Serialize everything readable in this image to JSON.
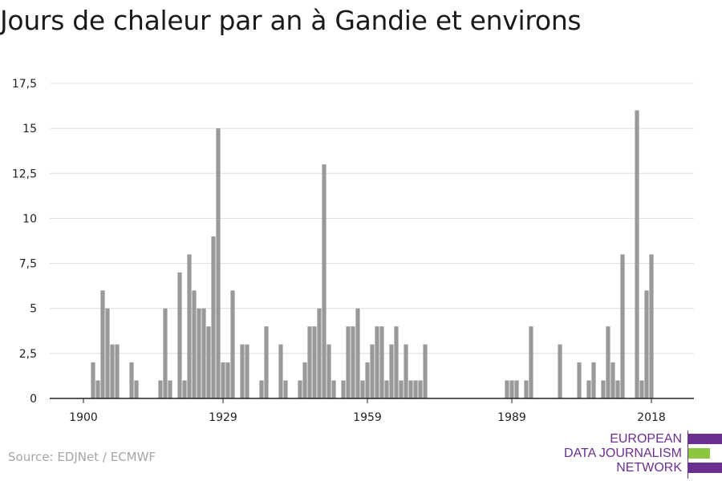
{
  "page": {
    "title": "Jours de chaleur par an à Gandie et environs",
    "source": "Source: EDJNet / ECMWF",
    "logo": {
      "lines": [
        "EUROPEAN",
        "DATA JOURNALISM",
        "NETWORK"
      ],
      "colors": {
        "purple": "#6b2f8f",
        "green": "#8cc63f"
      }
    }
  },
  "chart_data": {
    "type": "bar",
    "color": "#999999",
    "grid": true,
    "ylim": [
      0,
      17.5
    ],
    "yticks": [
      0,
      2.5,
      5,
      7.5,
      10,
      12.5,
      15,
      17.5
    ],
    "ytick_labels": [
      "0",
      "2,5",
      "5",
      "7,5",
      "10",
      "12,5",
      "15",
      "17,5"
    ],
    "xlim": [
      1899,
      2018
    ],
    "xticks": [
      1900,
      1929,
      1959,
      1989,
      2018
    ],
    "xtick_labels": [
      "1900",
      "1929",
      "1959",
      "1989",
      "2018"
    ],
    "xlabel": "",
    "ylabel": "",
    "years": [
      1900,
      1901,
      1902,
      1903,
      1904,
      1905,
      1906,
      1907,
      1908,
      1909,
      1910,
      1911,
      1912,
      1913,
      1914,
      1915,
      1916,
      1917,
      1918,
      1919,
      1920,
      1921,
      1922,
      1923,
      1924,
      1925,
      1926,
      1927,
      1928,
      1929,
      1930,
      1931,
      1932,
      1933,
      1934,
      1935,
      1936,
      1937,
      1938,
      1939,
      1940,
      1941,
      1942,
      1943,
      1944,
      1945,
      1946,
      1947,
      1948,
      1949,
      1950,
      1951,
      1952,
      1953,
      1954,
      1955,
      1956,
      1957,
      1958,
      1959,
      1960,
      1961,
      1962,
      1963,
      1964,
      1965,
      1966,
      1967,
      1968,
      1969,
      1970,
      1971,
      1972,
      1973,
      1974,
      1975,
      1976,
      1977,
      1978,
      1979,
      1980,
      1981,
      1982,
      1983,
      1984,
      1985,
      1986,
      1987,
      1988,
      1989,
      1990,
      1991,
      1992,
      1993,
      1994,
      1995,
      1996,
      1997,
      1998,
      1999,
      2000,
      2001,
      2002,
      2003,
      2004,
      2005,
      2006,
      2007,
      2008,
      2009,
      2010,
      2011,
      2012,
      2013,
      2014,
      2015,
      2016,
      2017,
      2018,
      2019
    ],
    "values": [
      0,
      0,
      2,
      1,
      6,
      5,
      3,
      3,
      0,
      0,
      2,
      1,
      0,
      0,
      0,
      0,
      1,
      5,
      1,
      0,
      7,
      1,
      8,
      6,
      5,
      5,
      4,
      9,
      15,
      2,
      2,
      6,
      0,
      3,
      3,
      0,
      0,
      1,
      4,
      0,
      0,
      3,
      1,
      0,
      0,
      1,
      2,
      4,
      4,
      5,
      13,
      3,
      1,
      0,
      1,
      4,
      4,
      5,
      1,
      2,
      3,
      4,
      4,
      1,
      3,
      4,
      1,
      3,
      1,
      1,
      1,
      3,
      0,
      0,
      0,
      0,
      0,
      0,
      0,
      0,
      0,
      0,
      0,
      0,
      0,
      0,
      0,
      0,
      1,
      1,
      1,
      0,
      1,
      4,
      0,
      0,
      0,
      0,
      0,
      3,
      0,
      0,
      0,
      2,
      0,
      1,
      2,
      0,
      1,
      4,
      2,
      1,
      8,
      0,
      0,
      16,
      1,
      6,
      8,
      0
    ]
  }
}
